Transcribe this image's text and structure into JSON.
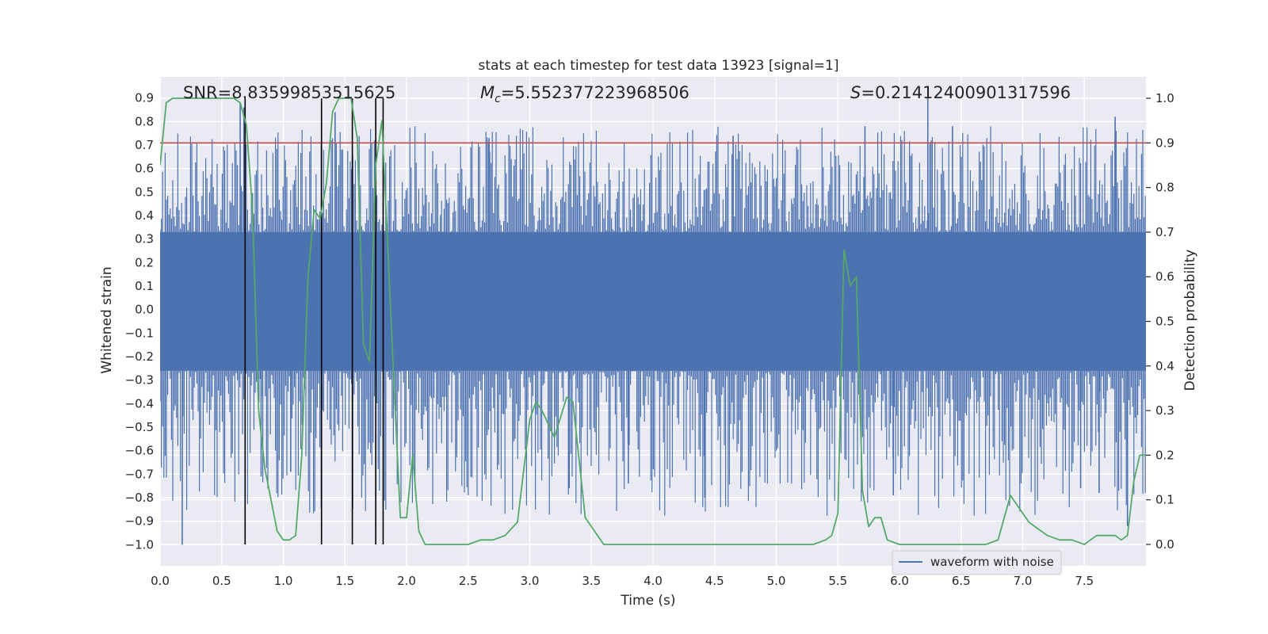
{
  "chart_data": {
    "type": "line",
    "title": "stats at each timestep for test data 13923 [signal=1]",
    "xlabel": "Time (s)",
    "ylabel": "Whitened strain",
    "y2label": "Detection probability",
    "xlim": [
      0.0,
      8.0
    ],
    "ylim": [
      -1.09,
      0.99
    ],
    "y2lim": [
      -0.048,
      1.048
    ],
    "x_ticks": [
      "0.0",
      "0.5",
      "1.0",
      "1.5",
      "2.0",
      "2.5",
      "3.0",
      "3.5",
      "4.0",
      "4.5",
      "5.0",
      "5.5",
      "6.0",
      "6.5",
      "7.0",
      "7.5"
    ],
    "y_ticks": [
      "0.9",
      "0.8",
      "0.7",
      "0.6",
      "0.5",
      "0.4",
      "0.3",
      "0.2",
      "0.1",
      "0.0",
      "−0.1",
      "−0.2",
      "−0.3",
      "−0.4",
      "−0.5",
      "−0.6",
      "−0.7",
      "−0.8",
      "−0.9",
      "−1.0"
    ],
    "y2_ticks": [
      "1.0",
      "0.9",
      "0.8",
      "0.7",
      "0.6",
      "0.5",
      "0.4",
      "0.3",
      "0.2",
      "0.1",
      "0.0"
    ],
    "grid": true,
    "legend": {
      "position": "lower-right",
      "entries": [
        "waveform with noise"
      ]
    },
    "annotations": {
      "snr": "SNR=8.83599853515625",
      "mc": "=5.552377223968506",
      "s": "=0.21412400901317596"
    },
    "threshold_probability": 0.9,
    "vertical_markers": [
      0.69,
      1.31,
      1.56,
      1.75,
      1.81
    ],
    "colors": {
      "waveform": "#4c72b0",
      "probability": "#55a868",
      "threshold": "#c44e52",
      "markers": "#000000",
      "plot_bg": "#eaeaf2"
    },
    "series": [
      {
        "name": "waveform with noise",
        "description_type": "noise",
        "envelope_core": [
          -0.26,
          0.33
        ],
        "spike_max": 0.9,
        "spike_min": -1.0,
        "spikes": [
          {
            "x": 0.18,
            "y": -1.0
          },
          {
            "x": 0.65,
            "y": 0.88
          },
          {
            "x": 0.68,
            "y": 0.86
          },
          {
            "x": 0.82,
            "y": -0.71
          },
          {
            "x": 1.06,
            "y": -0.69
          },
          {
            "x": 1.42,
            "y": 0.84
          },
          {
            "x": 2.67,
            "y": 0.73
          },
          {
            "x": 3.32,
            "y": -0.76
          },
          {
            "x": 3.8,
            "y": -0.74
          },
          {
            "x": 4.42,
            "y": -0.8
          },
          {
            "x": 4.65,
            "y": 0.74
          },
          {
            "x": 5.72,
            "y": 0.78
          },
          {
            "x": 5.95,
            "y": -0.79
          },
          {
            "x": 6.23,
            "y": 0.9
          },
          {
            "x": 6.43,
            "y": 0.78
          },
          {
            "x": 7.47,
            "y": -0.76
          },
          {
            "x": 7.62,
            "y": -0.78
          },
          {
            "x": 7.75,
            "y": 0.82
          },
          {
            "x": 7.85,
            "y": -0.92
          }
        ]
      },
      {
        "name": "",
        "axis": "right",
        "x": [
          0.0,
          0.05,
          0.1,
          0.2,
          0.3,
          0.4,
          0.5,
          0.6,
          0.65,
          0.7,
          0.75,
          0.8,
          0.85,
          0.9,
          0.95,
          1.0,
          1.05,
          1.1,
          1.15,
          1.2,
          1.25,
          1.3,
          1.35,
          1.4,
          1.45,
          1.5,
          1.55,
          1.6,
          1.65,
          1.7,
          1.75,
          1.8,
          1.85,
          1.9,
          1.95,
          2.0,
          2.05,
          2.1,
          2.15,
          2.2,
          2.3,
          2.4,
          2.5,
          2.6,
          2.7,
          2.8,
          2.9,
          3.0,
          3.05,
          3.1,
          3.2,
          3.3,
          3.35,
          3.4,
          3.45,
          3.5,
          3.55,
          3.6,
          3.7,
          3.8,
          4.0,
          4.2,
          4.5,
          4.8,
          5.0,
          5.2,
          5.3,
          5.4,
          5.45,
          5.5,
          5.55,
          5.6,
          5.65,
          5.7,
          5.75,
          5.8,
          5.85,
          5.9,
          6.0,
          6.2,
          6.5,
          6.7,
          6.8,
          6.9,
          6.95,
          7.0,
          7.05,
          7.1,
          7.15,
          7.2,
          7.3,
          7.4,
          7.5,
          7.55,
          7.6,
          7.65,
          7.7,
          7.75,
          7.8,
          7.85,
          7.9,
          7.95,
          8.0
        ],
        "y": [
          0.85,
          0.99,
          1.0,
          1.0,
          1.0,
          1.0,
          1.0,
          1.0,
          0.99,
          0.94,
          0.75,
          0.3,
          0.17,
          0.1,
          0.03,
          0.01,
          0.01,
          0.02,
          0.2,
          0.6,
          0.75,
          0.73,
          0.81,
          0.97,
          1.0,
          1.0,
          1.0,
          0.91,
          0.45,
          0.41,
          0.85,
          0.95,
          0.65,
          0.35,
          0.06,
          0.06,
          0.2,
          0.03,
          0.0,
          0.0,
          0.0,
          0.0,
          0.0,
          0.01,
          0.01,
          0.02,
          0.05,
          0.28,
          0.32,
          0.3,
          0.24,
          0.33,
          0.32,
          0.19,
          0.06,
          0.04,
          0.02,
          0.0,
          0.0,
          0.0,
          0.0,
          0.0,
          0.0,
          0.0,
          0.0,
          0.0,
          0.0,
          0.01,
          0.02,
          0.07,
          0.66,
          0.58,
          0.6,
          0.12,
          0.04,
          0.06,
          0.06,
          0.01,
          0.0,
          0.0,
          0.0,
          0.0,
          0.01,
          0.11,
          0.09,
          0.07,
          0.05,
          0.04,
          0.03,
          0.02,
          0.01,
          0.01,
          0.0,
          0.01,
          0.02,
          0.02,
          0.02,
          0.02,
          0.01,
          0.02,
          0.14,
          0.2,
          0.2
        ]
      }
    ]
  }
}
